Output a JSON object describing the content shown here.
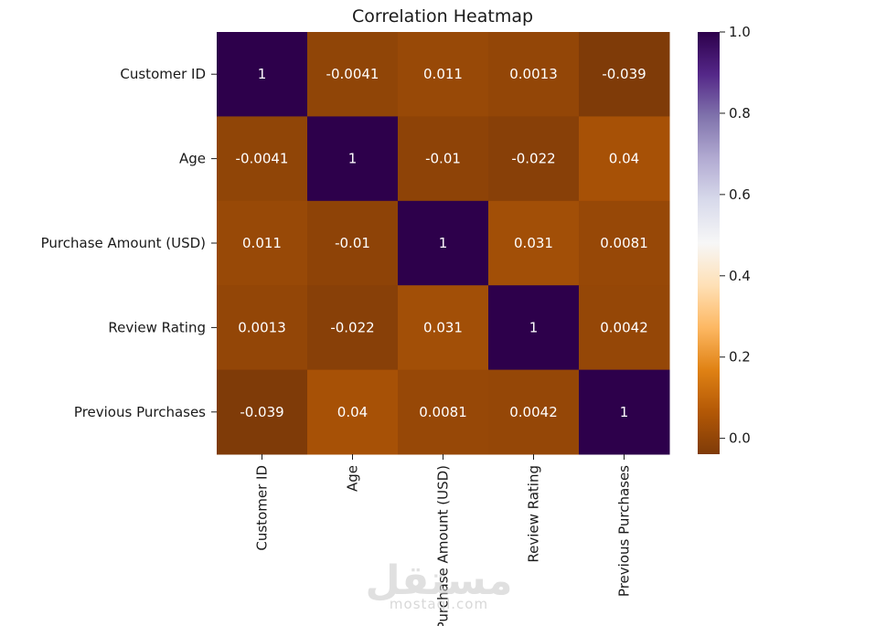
{
  "chart_data": {
    "type": "heatmap",
    "title": "Correlation Heatmap",
    "categories": [
      "Customer ID",
      "Age",
      "Purchase Amount (USD)",
      "Review Rating",
      "Previous Purchases"
    ],
    "values": [
      [
        1,
        -0.0041,
        0.011,
        0.0013,
        -0.039
      ],
      [
        -0.0041,
        1,
        -0.01,
        -0.022,
        0.04
      ],
      [
        0.011,
        -0.01,
        1,
        0.031,
        0.0081
      ],
      [
        0.0013,
        -0.022,
        0.031,
        1,
        0.0042
      ],
      [
        -0.039,
        0.04,
        0.0081,
        0.0042,
        1
      ]
    ],
    "labels": [
      [
        "1",
        "-0.0041",
        "0.011",
        "0.0013",
        "-0.039"
      ],
      [
        "-0.0041",
        "1",
        "-0.01",
        "-0.022",
        "0.04"
      ],
      [
        "0.011",
        "-0.01",
        "1",
        "0.031",
        "0.0081"
      ],
      [
        "0.0013",
        "-0.022",
        "0.031",
        "1",
        "0.0042"
      ],
      [
        "-0.039",
        "0.04",
        "0.0081",
        "0.0042",
        "1"
      ]
    ],
    "colorbar": {
      "min": -0.039,
      "max": 1.0,
      "ticks": [
        "0.0",
        "0.2",
        "0.4",
        "0.6",
        "0.8",
        "1.0"
      ],
      "colormap": "PuOr",
      "colors": [
        "#7f3b08",
        "#b35806",
        "#e08214",
        "#fdb863",
        "#fee0b6",
        "#f7f7f7",
        "#d8daeb",
        "#b2abd2",
        "#8073ac",
        "#542788",
        "#2d004b"
      ]
    }
  },
  "watermark": {
    "text": "مستقل",
    "subtext": "mostaql.com"
  }
}
